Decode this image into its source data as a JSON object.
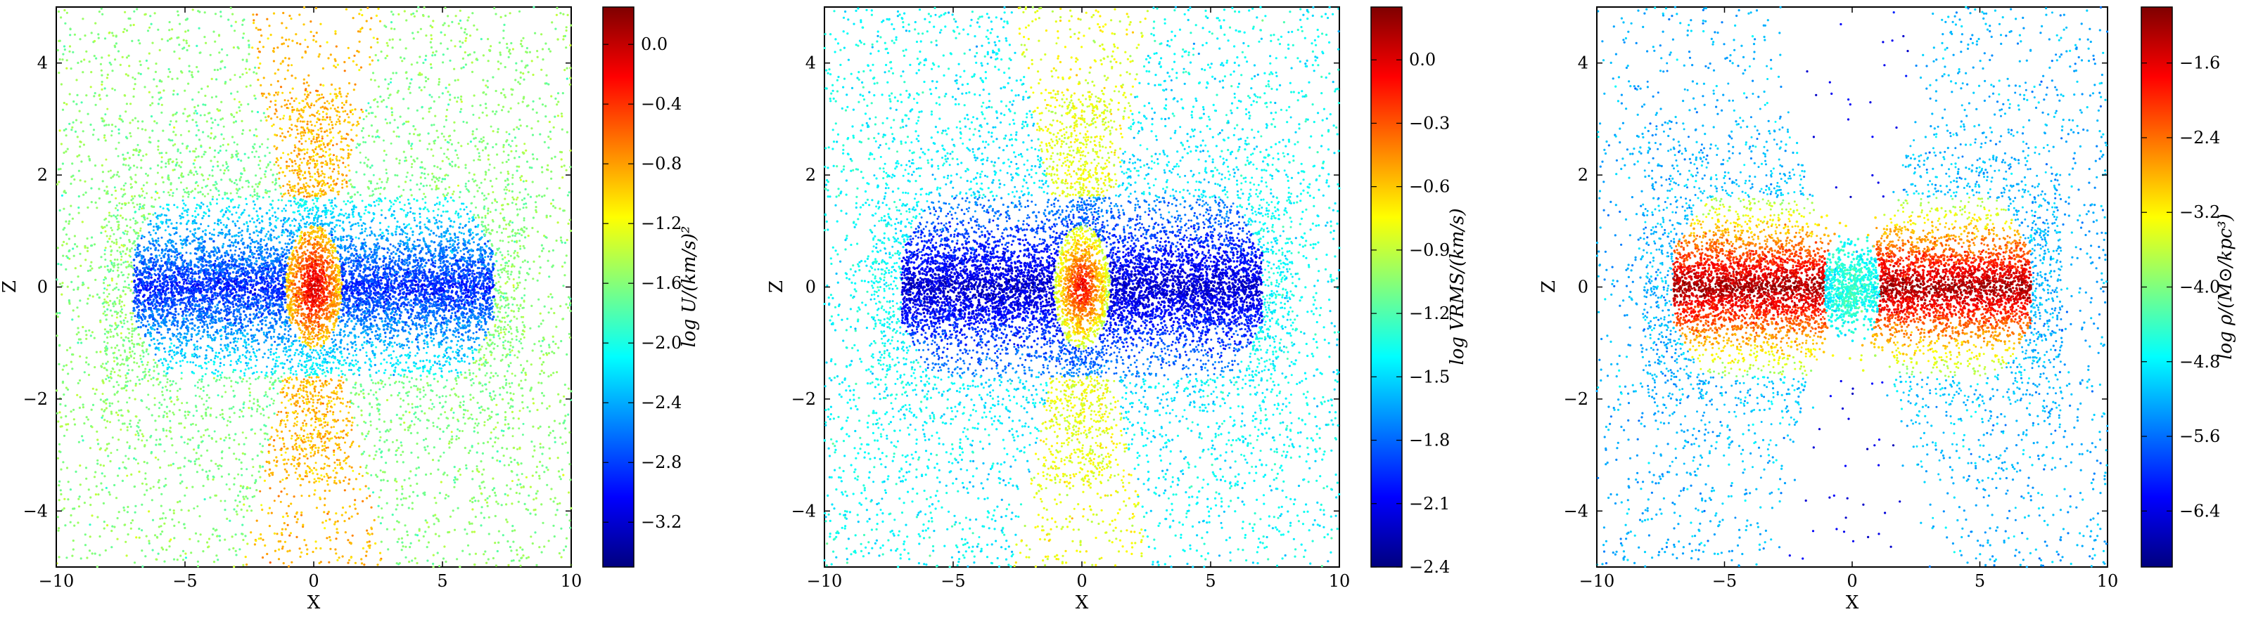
{
  "colors": {
    "jet": [
      "#00007f",
      "#0000ff",
      "#007fff",
      "#00ffff",
      "#7fff7f",
      "#ffff00",
      "#ff7f00",
      "#ff0000",
      "#7f0000"
    ]
  },
  "chart_data": [
    {
      "type": "scatter",
      "xlabel": "X",
      "ylabel": "Z",
      "xlim": [
        -10,
        10
      ],
      "ylim": [
        -5,
        5
      ],
      "xticks": [
        -10,
        -5,
        0,
        5,
        10
      ],
      "yticks": [
        -4,
        -2,
        0,
        2,
        4
      ],
      "colorbar": {
        "label": "log U/(km/s)²",
        "range": [
          -3.5,
          0.25
        ],
        "ticks": [
          0.0,
          -0.4,
          -0.8,
          -1.2,
          -1.6,
          -2.0,
          -2.4,
          -2.8,
          -3.2
        ],
        "tick_labels": [
          "0.0",
          "−0.4",
          "−0.8",
          "−1.2",
          "−1.6",
          "−2.0",
          "−2.4",
          "−2.8",
          "−3.2"
        ]
      },
      "pattern": {
        "disk_extent": 7.0,
        "core_value": 0.0,
        "disk_value": -2.9,
        "halo_value": -1.7,
        "bicone_value": -0.9,
        "background_density": "uniform"
      }
    },
    {
      "type": "scatter",
      "xlabel": "X",
      "ylabel": "Z",
      "xlim": [
        -10,
        10
      ],
      "ylim": [
        -5,
        5
      ],
      "xticks": [
        -10,
        -5,
        0,
        5,
        10
      ],
      "yticks": [
        -4,
        -2,
        0,
        2,
        4
      ],
      "colorbar": {
        "label": "log VRMS/(km/s)",
        "range": [
          -2.4,
          0.25
        ],
        "ticks": [
          0.0,
          -0.3,
          -0.6,
          -0.9,
          -1.2,
          -1.5,
          -1.8,
          -2.1,
          -2.4
        ],
        "tick_labels": [
          "0.0",
          "−0.3",
          "−0.6",
          "−0.9",
          "−1.2",
          "−1.5",
          "−1.8",
          "−2.1",
          "−2.4"
        ]
      },
      "pattern": {
        "disk_extent": 7.0,
        "core_value": 0.0,
        "disk_value": -2.2,
        "halo_value": -1.5,
        "bicone_value": -0.8,
        "background_density": "uniform"
      }
    },
    {
      "type": "scatter",
      "xlabel": "X",
      "ylabel": "Z",
      "xlim": [
        -10,
        10
      ],
      "ylim": [
        -5,
        5
      ],
      "xticks": [
        -10,
        -5,
        0,
        5,
        10
      ],
      "yticks": [
        -4,
        -2,
        0,
        2,
        4
      ],
      "colorbar": {
        "label": "log ρ/(M⊙/kpc³)",
        "range": [
          -7.0,
          -1.0
        ],
        "ticks": [
          -1.6,
          -2.4,
          -3.2,
          -4.0,
          -4.8,
          -5.6,
          -6.4
        ],
        "tick_labels": [
          "−1.6",
          "−2.4",
          "−3.2",
          "−4.0",
          "−4.8",
          "−5.6",
          "−6.4"
        ]
      },
      "pattern": {
        "disk_extent": 7.0,
        "core_value": -4.4,
        "disk_value": -1.2,
        "halo_value": -5.0,
        "bicone_value": -6.4,
        "background_density": "sparse"
      }
    }
  ]
}
